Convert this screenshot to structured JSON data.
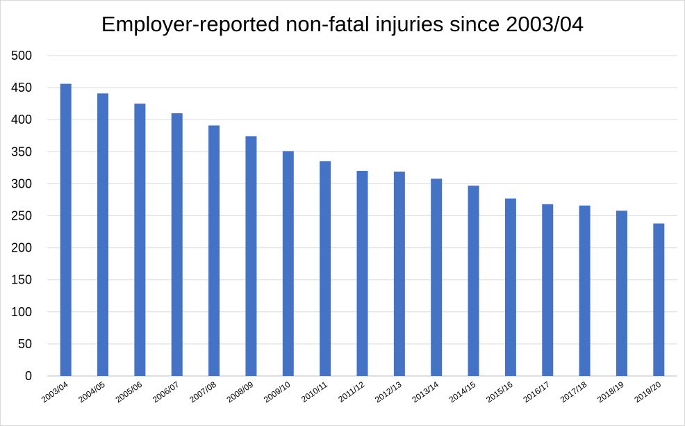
{
  "chart_data": {
    "type": "bar",
    "title": "Employer-reported non-fatal injuries since 2003/04",
    "xlabel": "",
    "ylabel": "",
    "categories": [
      "2003/04",
      "2004/05",
      "2005/06",
      "2006/07",
      "2007/08",
      "2008/09",
      "2009/10",
      "2010/11",
      "2011/12",
      "2012/13",
      "2013/14",
      "2014/15",
      "2015/16",
      "2016/17",
      "2017/18",
      "2018/19",
      "2019/20"
    ],
    "values": [
      456,
      441,
      425,
      410,
      391,
      374,
      351,
      335,
      320,
      319,
      308,
      297,
      277,
      268,
      266,
      258,
      238
    ],
    "ylim": [
      0,
      500
    ],
    "yticks": [
      0,
      50,
      100,
      150,
      200,
      250,
      300,
      350,
      400,
      450,
      500
    ],
    "grid": true,
    "legend": "none",
    "bar_color": "#4472c4",
    "grid_color": "#d9d9d9"
  }
}
